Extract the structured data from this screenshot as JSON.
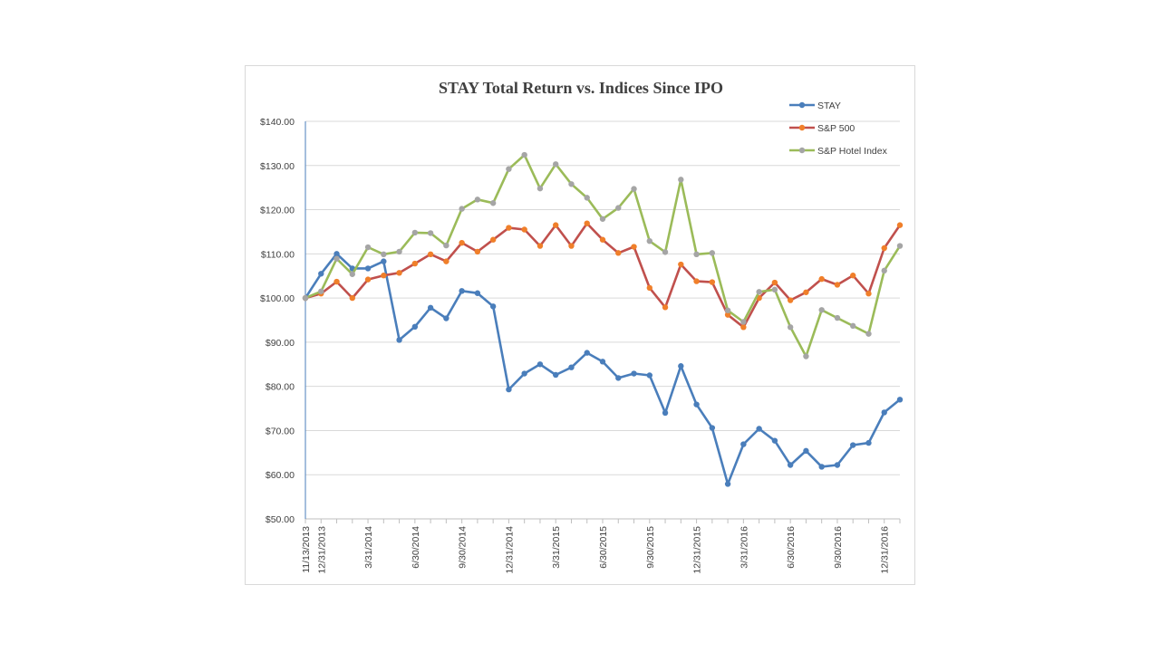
{
  "chart_data": {
    "type": "line",
    "title": "STAY Total Return vs. Indices Since IPO",
    "xlabel": "",
    "ylabel": "",
    "ylim": [
      50,
      140
    ],
    "y_ticks": [
      "$50.00",
      "$60.00",
      "$70.00",
      "$80.00",
      "$90.00",
      "$100.00",
      "$110.00",
      "$120.00",
      "$130.00",
      "$140.00"
    ],
    "y_tick_values": [
      50,
      60,
      70,
      80,
      90,
      100,
      110,
      120,
      130,
      140
    ],
    "grid": true,
    "legend_position": "top-right",
    "x_tick_labels": [
      {
        "index": 0,
        "label": "11/13/2013"
      },
      {
        "index": 1,
        "label": "12/31/2013"
      },
      {
        "index": 4,
        "label": "3/31/2014"
      },
      {
        "index": 7,
        "label": "6/30/2014"
      },
      {
        "index": 10,
        "label": "9/30/2014"
      },
      {
        "index": 13,
        "label": "12/31/2014"
      },
      {
        "index": 16,
        "label": "3/31/2015"
      },
      {
        "index": 19,
        "label": "6/30/2015"
      },
      {
        "index": 22,
        "label": "9/30/2015"
      },
      {
        "index": 25,
        "label": "12/31/2015"
      },
      {
        "index": 28,
        "label": "3/31/2016"
      },
      {
        "index": 31,
        "label": "6/30/2016"
      },
      {
        "index": 34,
        "label": "9/30/2016"
      },
      {
        "index": 37,
        "label": "12/31/2016"
      }
    ],
    "series": [
      {
        "name": "STAY",
        "color": "#4a7ebb",
        "values": [
          100.0,
          105.5,
          110.0,
          106.7,
          106.7,
          108.3,
          90.5,
          93.5,
          97.8,
          95.4,
          101.6,
          101.1,
          98.1,
          79.3,
          82.9,
          85.0,
          82.6,
          84.3,
          87.6,
          85.6,
          81.9,
          82.9,
          82.5,
          74.0,
          84.6,
          75.9,
          70.6,
          57.9,
          66.9,
          70.4,
          67.7,
          62.2,
          65.4,
          61.8,
          62.2,
          66.7,
          67.2,
          74.1,
          77.0
        ]
      },
      {
        "name": "S&P 500",
        "color": "#c0504d",
        "marker_color": "#f07f2a",
        "values": [
          100.0,
          101.0,
          103.7,
          100.0,
          104.2,
          105.1,
          105.7,
          107.8,
          109.9,
          108.3,
          112.5,
          110.5,
          113.2,
          115.9,
          115.5,
          111.8,
          116.5,
          111.8,
          116.9,
          113.2,
          110.2,
          111.6,
          102.3,
          97.9,
          107.6,
          103.8,
          103.6,
          96.2,
          93.4,
          100.0,
          103.5,
          99.5,
          101.3,
          104.3,
          103.0,
          105.1,
          101.0,
          111.3,
          116.5
        ]
      },
      {
        "name": "S&P Hotel Index",
        "color": "#9bbb59",
        "marker_color": "#a5a5a5",
        "values": [
          100.0,
          101.5,
          108.9,
          105.4,
          111.5,
          109.9,
          110.5,
          114.8,
          114.7,
          111.9,
          120.2,
          122.3,
          121.5,
          129.2,
          132.4,
          124.8,
          130.3,
          125.8,
          122.7,
          117.9,
          120.4,
          124.7,
          112.9,
          110.4,
          126.8,
          109.9,
          110.2,
          97.2,
          94.6,
          101.4,
          101.9,
          93.4,
          86.8,
          97.3,
          95.5,
          93.7,
          91.9,
          106.2,
          111.8
        ]
      }
    ]
  }
}
